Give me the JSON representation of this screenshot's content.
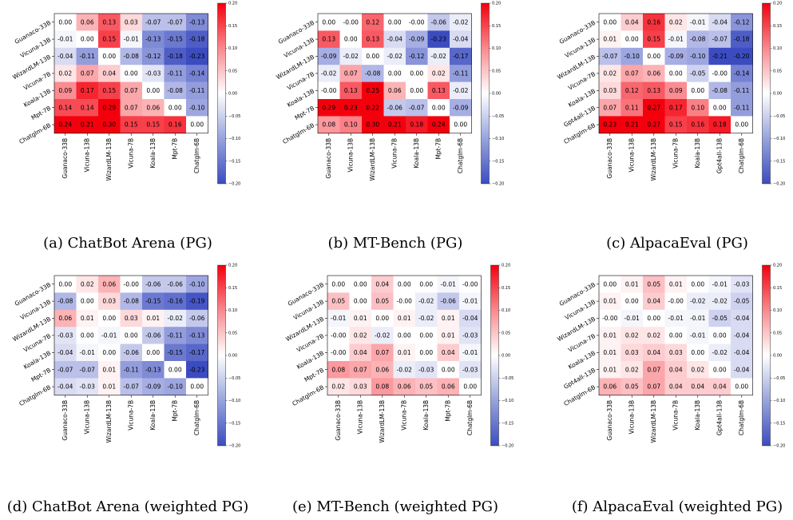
{
  "colorbar": {
    "min": -0.2,
    "max": 0.2,
    "ticks": [
      "0.20",
      "0.15",
      "0.10",
      "0.05",
      "0.00",
      "−0.05",
      "−0.10",
      "−0.15",
      "−0.20"
    ],
    "color_low": "#3b4cc0",
    "color_mid": "#ffffff",
    "color_high": "#f4000d"
  },
  "chart_data": [
    {
      "type": "heatmap",
      "title": "(a) ChatBot Arena (PG)",
      "models": [
        "Guanaco-33B",
        "Vicuna-13B",
        "WizardLM-13B",
        "Vicuna-7B",
        "Koala-13B",
        "Mpt-7B",
        "Chatglm-6B"
      ],
      "values": [
        [
          "0.00",
          "0.06",
          "0.13",
          "0.03",
          "-0.07",
          "-0.07",
          "-0.13"
        ],
        [
          "-0.01",
          "0.00",
          "0.15",
          "-0.01",
          "-0.13",
          "-0.15",
          "-0.18"
        ],
        [
          "-0.04",
          "-0.11",
          "0.00",
          "-0.08",
          "-0.12",
          "-0.18",
          "-0.23"
        ],
        [
          "0.02",
          "0.07",
          "0.04",
          "0.00",
          "-0.03",
          "-0.11",
          "-0.14"
        ],
        [
          "0.09",
          "0.17",
          "0.15",
          "0.07",
          "0.00",
          "-0.08",
          "-0.11"
        ],
        [
          "0.14",
          "0.14",
          "0.29",
          "0.07",
          "0.06",
          "0.00",
          "-0.10"
        ],
        [
          "0.24",
          "0.21",
          "0.30",
          "0.15",
          "0.15",
          "0.16",
          "0.00"
        ]
      ]
    },
    {
      "type": "heatmap",
      "title": "(b) MT-Bench (PG)",
      "models": [
        "Guanaco-33B",
        "Vicuna-13B",
        "WizardLM-13B",
        "Vicuna-7B",
        "Koala-13B",
        "Mpt-7B",
        "Chatglm-6B"
      ],
      "values": [
        [
          "0.00",
          "-0.00",
          "0.12",
          "0.00",
          "-0.00",
          "-0.06",
          "-0.02"
        ],
        [
          "0.13",
          "0.00",
          "0.13",
          "-0.04",
          "-0.09",
          "-0.23",
          "-0.04"
        ],
        [
          "-0.09",
          "-0.02",
          "0.00",
          "-0.02",
          "-0.12",
          "-0.02",
          "-0.17"
        ],
        [
          "-0.02",
          "0.07",
          "-0.08",
          "0.00",
          "0.00",
          "0.02",
          "-0.11"
        ],
        [
          "-0.00",
          "0.13",
          "0.25",
          "0.06",
          "0.00",
          "0.13",
          "-0.02"
        ],
        [
          "0.29",
          "0.23",
          "0.22",
          "-0.06",
          "-0.07",
          "0.00",
          "-0.09"
        ],
        [
          "0.08",
          "0.10",
          "0.30",
          "0.21",
          "0.18",
          "0.24",
          "0.00"
        ]
      ]
    },
    {
      "type": "heatmap",
      "title": "(c) AlpacaEval (PG)",
      "models": [
        "Guanaco-33B",
        "Vicuna-13B",
        "WizardLM-13B",
        "Vicuna-7B",
        "Koala-13B",
        "Gpt4all-13B",
        "Chatglm-6B"
      ],
      "values": [
        [
          "0.00",
          "0.04",
          "0.16",
          "0.02",
          "-0.01",
          "-0.04",
          "-0.12"
        ],
        [
          "0.01",
          "0.00",
          "0.15",
          "-0.01",
          "-0.08",
          "-0.07",
          "-0.18"
        ],
        [
          "-0.07",
          "-0.10",
          "0.00",
          "-0.09",
          "-0.10",
          "-0.21",
          "-0.20"
        ],
        [
          "0.02",
          "0.07",
          "0.06",
          "0.00",
          "-0.05",
          "-0.00",
          "-0.14"
        ],
        [
          "0.03",
          "0.12",
          "0.13",
          "0.09",
          "0.00",
          "-0.08",
          "-0.11"
        ],
        [
          "0.07",
          "0.11",
          "0.27",
          "0.17",
          "0.10",
          "0.00",
          "-0.11"
        ],
        [
          "0.23",
          "0.21",
          "0.27",
          "0.15",
          "0.16",
          "0.18",
          "0.00"
        ]
      ]
    },
    {
      "type": "heatmap",
      "title": "(d) ChatBot Arena (weighted PG)",
      "models": [
        "Guanaco-33B",
        "Vicuna-13B",
        "WizardLM-13B",
        "Vicuna-7B",
        "Koala-13B",
        "Mpt-7B",
        "Chatglm-6B"
      ],
      "values": [
        [
          "0.00",
          "0.02",
          "0.06",
          "-0.00",
          "-0.06",
          "-0.06",
          "-0.10"
        ],
        [
          "-0.08",
          "0.00",
          "0.03",
          "-0.08",
          "-0.15",
          "-0.16",
          "-0.19"
        ],
        [
          "0.06",
          "0.01",
          "0.00",
          "0.03",
          "0.01",
          "-0.02",
          "-0.06"
        ],
        [
          "-0.03",
          "0.00",
          "-0.01",
          "0.00",
          "-0.06",
          "-0.11",
          "-0.13"
        ],
        [
          "-0.04",
          "-0.01",
          "0.00",
          "-0.06",
          "0.00",
          "-0.15",
          "-0.17"
        ],
        [
          "-0.07",
          "-0.07",
          "0.01",
          "-0.11",
          "-0.13",
          "0.00",
          "-0.23"
        ],
        [
          "-0.04",
          "-0.03",
          "0.01",
          "-0.07",
          "-0.09",
          "-0.10",
          "0.00"
        ]
      ]
    },
    {
      "type": "heatmap",
      "title": "(e) MT-Bench (weighted PG)",
      "models": [
        "Guanaco-33B",
        "Vicuna-13B",
        "WizardLM-13B",
        "Vicuna-7B",
        "Koala-13B",
        "Mpt-7B",
        "Chatglm-6B"
      ],
      "values": [
        [
          "0.00",
          "0.00",
          "0.04",
          "0.00",
          "0.00",
          "-0.01",
          "-0.00"
        ],
        [
          "0.05",
          "0.00",
          "0.05",
          "-0.00",
          "-0.02",
          "-0.06",
          "-0.01"
        ],
        [
          "-0.01",
          "0.01",
          "0.00",
          "0.01",
          "-0.02",
          "0.01",
          "-0.04"
        ],
        [
          "-0.00",
          "0.02",
          "-0.02",
          "0.00",
          "0.00",
          "0.01",
          "-0.03"
        ],
        [
          "-0.00",
          "0.04",
          "0.07",
          "0.01",
          "0.00",
          "0.04",
          "-0.01"
        ],
        [
          "0.08",
          "0.07",
          "0.06",
          "-0.02",
          "-0.03",
          "0.00",
          "-0.03"
        ],
        [
          "0.02",
          "0.03",
          "0.08",
          "0.06",
          "0.05",
          "0.06",
          "0.00"
        ]
      ]
    },
    {
      "type": "heatmap",
      "title": "(f) AlpacaEval (weighted PG)",
      "models": [
        "Guanaco-33B",
        "Vicuna-13B",
        "WizardLM-13B",
        "Vicuna-7B",
        "Koala-13B",
        "Gpt4all-13B",
        "Chatglm-6B"
      ],
      "values": [
        [
          "0.00",
          "0.01",
          "0.05",
          "0.01",
          "0.00",
          "-0.01",
          "-0.03"
        ],
        [
          "0.01",
          "0.00",
          "0.04",
          "-0.00",
          "-0.02",
          "-0.02",
          "-0.05"
        ],
        [
          "-0.00",
          "-0.01",
          "0.00",
          "-0.01",
          "-0.01",
          "-0.05",
          "-0.04"
        ],
        [
          "0.01",
          "0.02",
          "0.02",
          "0.00",
          "-0.01",
          "0.00",
          "-0.04"
        ],
        [
          "0.01",
          "0.03",
          "0.04",
          "0.03",
          "0.00",
          "-0.02",
          "-0.04"
        ],
        [
          "0.01",
          "0.02",
          "0.07",
          "0.04",
          "0.02",
          "0.00",
          "-0.04"
        ],
        [
          "0.06",
          "0.05",
          "0.07",
          "0.04",
          "0.04",
          "0.04",
          "0.00"
        ]
      ]
    }
  ]
}
